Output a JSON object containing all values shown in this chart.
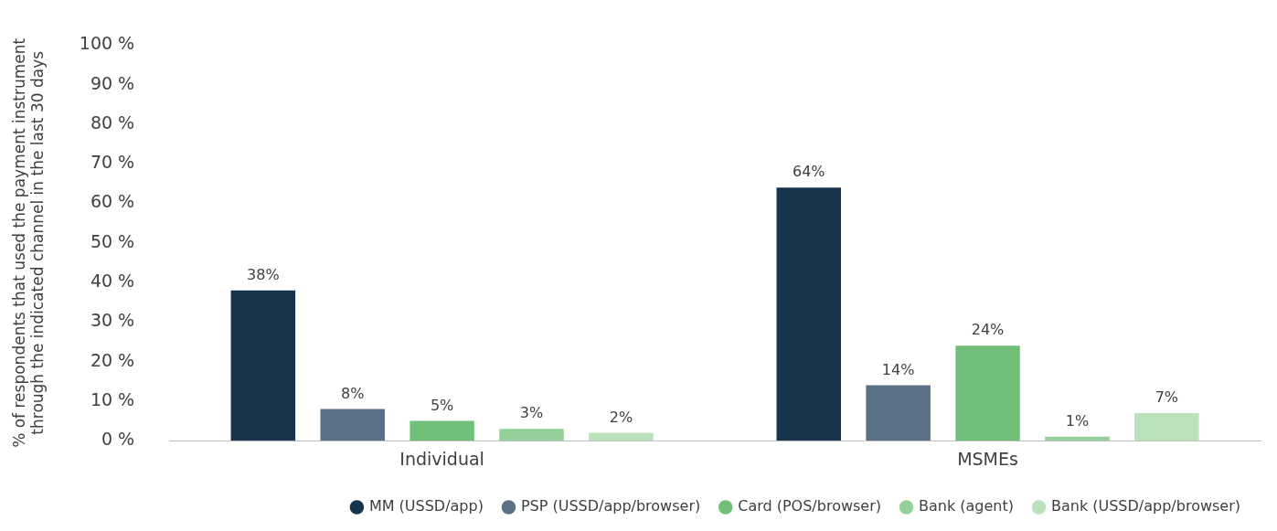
{
  "chart_data": {
    "type": "bar",
    "categories": [
      "Individual",
      "MSMEs"
    ],
    "ylabel": "% of respondents that used the payment instrument through the indicated channel in the last 30 days",
    "series": [
      {
        "name": "MM (USSD/app)",
        "color": "#17344f",
        "values": [
          38,
          64
        ],
        "value_labels": [
          "38%",
          "64%"
        ]
      },
      {
        "name": "PSP (USSD/app/browser)",
        "color": "#5a7087",
        "values": [
          8,
          14
        ],
        "value_labels": [
          "8%",
          "14%"
        ]
      },
      {
        "name": "Card (POS/browser)",
        "color": "#72bf7a",
        "values": [
          5,
          24
        ],
        "value_labels": [
          "5%",
          "24%"
        ]
      },
      {
        "name": "Bank (agent)",
        "color": "#94d09a",
        "values": [
          3,
          1
        ],
        "value_labels": [
          "3%",
          "1%"
        ]
      },
      {
        "name": "Bank (USSD/app/browser)",
        "color": "#b9e2bb",
        "values": [
          2,
          7
        ],
        "value_labels": [
          "2%",
          "7%"
        ]
      }
    ],
    "ylim": [
      0,
      100
    ],
    "yticks": [
      {
        "value": 0,
        "label": "0 %"
      },
      {
        "value": 10,
        "label": "10 %"
      },
      {
        "value": 20,
        "label": "20 %"
      },
      {
        "value": 30,
        "label": "30 %"
      },
      {
        "value": 40,
        "label": "40 %"
      },
      {
        "value": 50,
        "label": "50 %"
      },
      {
        "value": 60,
        "label": "60 %"
      },
      {
        "value": 70,
        "label": "70 %"
      },
      {
        "value": 80,
        "label": "80 %"
      },
      {
        "value": 90,
        "label": "90 %"
      },
      {
        "value": 100,
        "label": "100 %"
      }
    ],
    "grid": false,
    "legend": "bottom",
    "marker": "circle"
  }
}
